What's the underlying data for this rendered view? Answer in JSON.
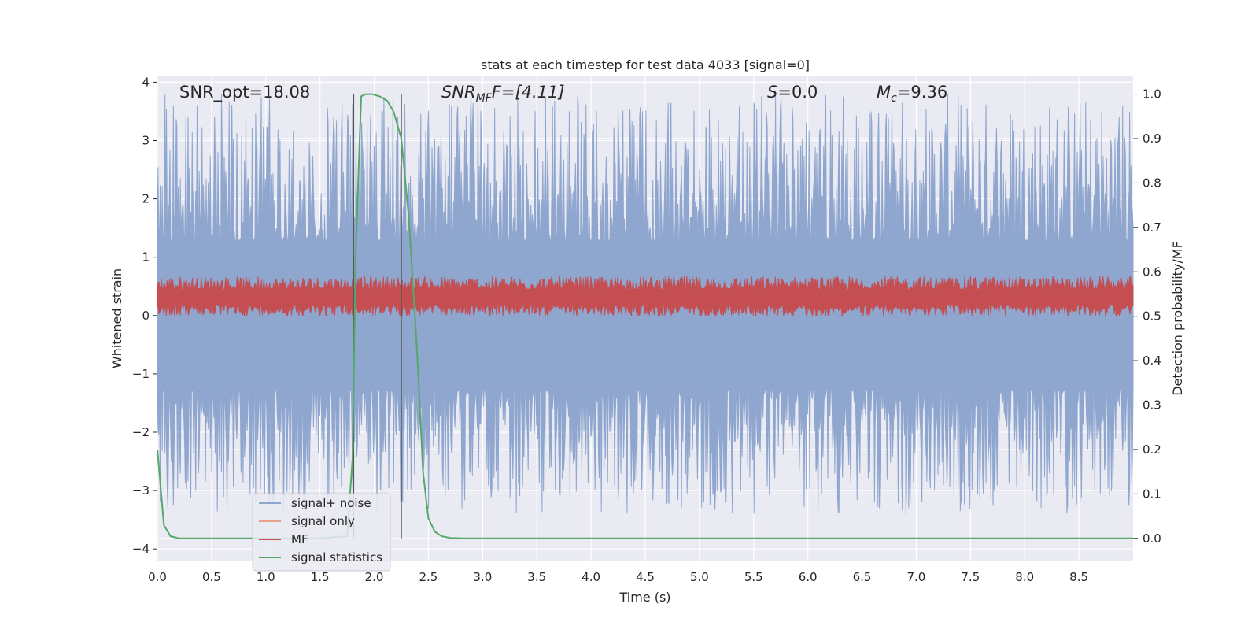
{
  "chart_data": {
    "type": "line",
    "title": "stats at each timestep for test data 4033 [signal=0]",
    "xlabel": "Time (s)",
    "ylabel": "Whitened strain",
    "y2label": "Detection probability/MF",
    "xlim": [
      0.0,
      9.0
    ],
    "ylim": [
      -4.2,
      4.1
    ],
    "y2lim": [
      -0.05,
      1.04
    ],
    "xticks": [
      "0.0",
      "0.5",
      "1.0",
      "1.5",
      "2.0",
      "2.5",
      "3.0",
      "3.5",
      "4.0",
      "4.5",
      "5.0",
      "5.5",
      "6.0",
      "6.5",
      "7.0",
      "7.5",
      "8.0",
      "8.5"
    ],
    "xtick_values": [
      0.0,
      0.5,
      1.0,
      1.5,
      2.0,
      2.5,
      3.0,
      3.5,
      4.0,
      4.5,
      5.0,
      5.5,
      6.0,
      6.5,
      7.0,
      7.5,
      8.0,
      8.5
    ],
    "yticks": [
      "4",
      "3",
      "2",
      "1",
      "0",
      "−1",
      "−2",
      "−3",
      "−4"
    ],
    "ytick_values": [
      4,
      3,
      2,
      1,
      0,
      -1,
      -2,
      -3,
      -4
    ],
    "y2ticks": [
      "1.0",
      "0.9",
      "0.8",
      "0.7",
      "0.6",
      "0.5",
      "0.4",
      "0.3",
      "0.2",
      "0.1",
      "0.0"
    ],
    "y2tick_values": [
      1.0,
      0.9,
      0.8,
      0.7,
      0.6,
      0.5,
      0.4,
      0.3,
      0.2,
      0.1,
      0.0
    ],
    "grid": true,
    "legend_position": "lower-left",
    "annotations": {
      "snr_opt": "SNR_opt=18.08",
      "snr_mf_main": "SNR",
      "snr_mf_sub": "MF",
      "snr_mf_value": "F=[4.11]",
      "s_main": "S",
      "s_value": "=0.0",
      "mc_main": "M",
      "mc_sub": "c",
      "mc_value": "=9.36"
    },
    "vertical_markers": [
      1.81,
      2.25
    ],
    "series": [
      {
        "name": "signal+ noise",
        "color": "#8fa6cf",
        "axis": "left",
        "style": "noise",
        "amplitude_envelope": [
          -3.4,
          3.8
        ],
        "center": 0.0
      },
      {
        "name": "signal only",
        "color": "#e8a08a",
        "axis": "left",
        "style": "flat",
        "values_constant": 0.0
      },
      {
        "name": "MF",
        "color": "#c44e52",
        "axis": "right",
        "style": "noise",
        "amplitude_envelope": [
          0.5,
          0.59
        ],
        "center": 0.54
      },
      {
        "name": "signal statistics",
        "color": "#55a868",
        "axis": "right",
        "x": [
          0.0,
          0.06,
          0.12,
          0.2,
          0.3,
          0.5,
          1.0,
          1.5,
          1.75,
          1.8,
          1.83,
          1.88,
          1.92,
          1.98,
          2.05,
          2.12,
          2.18,
          2.25,
          2.32,
          2.4,
          2.45,
          2.5,
          2.56,
          2.62,
          2.7,
          2.8,
          3.0,
          4.0,
          5.0,
          6.0,
          7.0,
          8.0,
          9.0
        ],
        "values": [
          0.2,
          0.03,
          0.005,
          0.0,
          0.0,
          0.0,
          0.0,
          0.0,
          0.005,
          0.18,
          0.65,
          0.995,
          1.0,
          1.0,
          0.995,
          0.985,
          0.96,
          0.9,
          0.72,
          0.4,
          0.15,
          0.045,
          0.015,
          0.005,
          0.001,
          0.0,
          0.0,
          0.0,
          0.0,
          0.0,
          0.0,
          0.0,
          0.0
        ]
      }
    ]
  }
}
